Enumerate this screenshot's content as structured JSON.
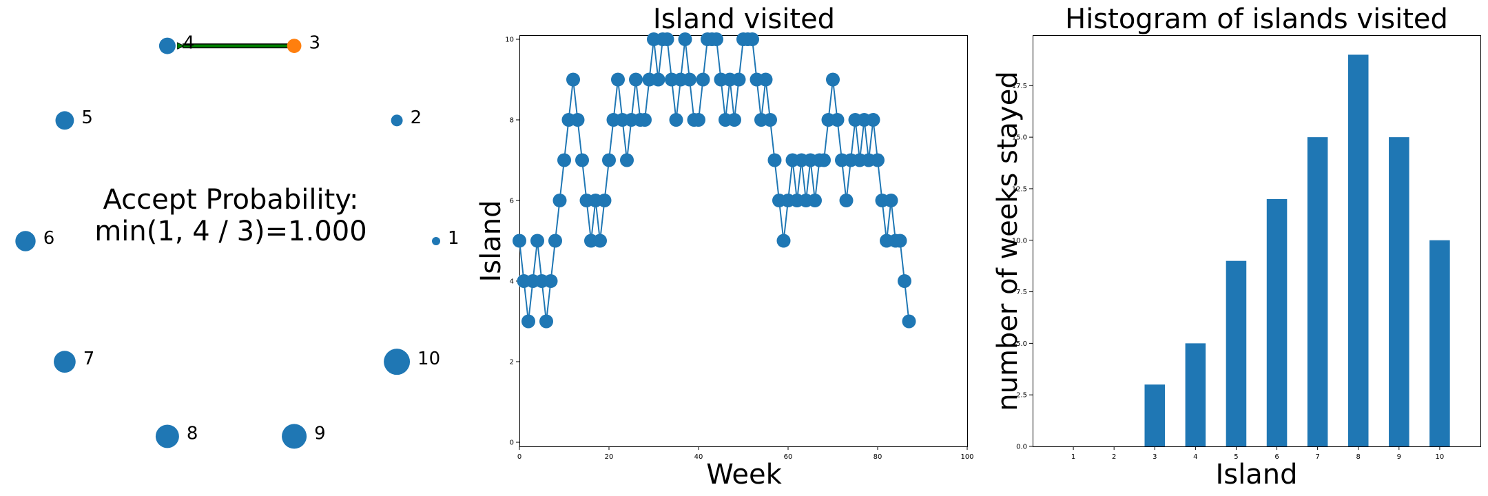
{
  "colors": {
    "node": "#1f77b4",
    "current": "#ff7f0e",
    "arrow_fill": "#008000",
    "arrow_edge": "#000000",
    "line": "#1f77b4",
    "bar": "#1f77b4"
  },
  "chart_data": [
    {
      "type": "network",
      "title": "",
      "annotation_line1": "Accept Probability:",
      "annotation_line2": "min(1, 4 / 3)=1.000",
      "nodes": [
        {
          "label": "1",
          "population": 1
        },
        {
          "label": "2",
          "population": 2
        },
        {
          "label": "3",
          "population": 3
        },
        {
          "label": "4",
          "population": 4
        },
        {
          "label": "5",
          "population": 5
        },
        {
          "label": "6",
          "population": 6
        },
        {
          "label": "7",
          "population": 7
        },
        {
          "label": "8",
          "population": 8
        },
        {
          "label": "9",
          "population": 9
        },
        {
          "label": "10",
          "population": 10
        }
      ],
      "current_node": "3",
      "proposed_node": "4"
    },
    {
      "type": "line",
      "title": "Island visited",
      "xlabel": "Week",
      "ylabel": "Island",
      "xlim": [
        0,
        100
      ],
      "ylim": [
        0,
        10
      ],
      "xticks": [
        "0",
        "20",
        "40",
        "60",
        "80",
        "100"
      ],
      "yticks": [
        "0",
        "2",
        "4",
        "6",
        "8",
        "10"
      ],
      "series": [
        {
          "name": "island",
          "values": [
            5,
            4,
            3,
            4,
            5,
            4,
            3,
            4,
            5,
            6,
            7,
            8,
            9,
            8,
            7,
            6,
            5,
            6,
            5,
            6,
            7,
            8,
            9,
            8,
            7,
            8,
            9,
            8,
            8,
            9,
            10,
            9,
            10,
            10,
            9,
            8,
            9,
            10,
            9,
            8,
            8,
            9,
            10,
            10,
            10,
            9,
            8,
            9,
            8,
            9,
            10,
            10,
            10,
            9,
            8,
            9,
            8,
            7,
            6,
            5,
            6,
            7,
            6,
            7,
            6,
            7,
            6,
            7,
            7,
            8,
            9,
            8,
            7,
            6,
            7,
            8,
            7,
            8,
            7,
            8,
            7,
            6,
            5,
            6,
            5,
            5,
            4,
            3
          ]
        }
      ]
    },
    {
      "type": "bar",
      "title": "Histogram of islands visited",
      "xlabel": "Island",
      "ylabel": "number of weeks stayed",
      "categories": [
        "1",
        "2",
        "3",
        "4",
        "5",
        "6",
        "7",
        "8",
        "9",
        "10"
      ],
      "values": [
        0,
        0,
        3,
        5,
        9,
        12,
        15,
        19,
        15,
        10
      ],
      "ylim": [
        0,
        19.95
      ],
      "yticks": [
        "0.0",
        "2.5",
        "5.0",
        "7.5",
        "10.0",
        "12.5",
        "15.0",
        "17.5"
      ]
    }
  ]
}
